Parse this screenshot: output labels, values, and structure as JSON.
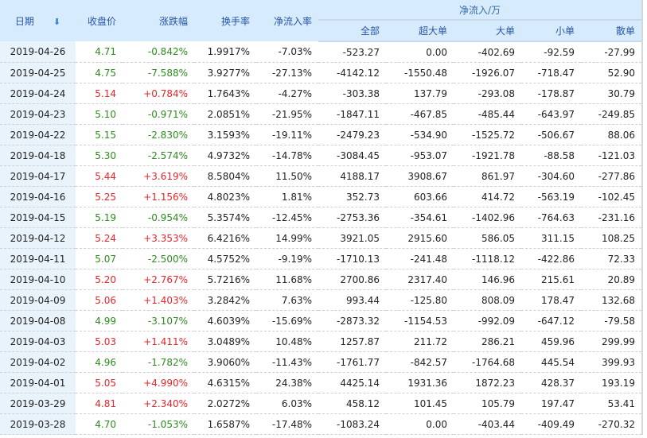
{
  "header": {
    "date": "日期",
    "sort_icon": "arrow-down-icon",
    "close": "收盘价",
    "change": "涨跌幅",
    "turnover": "换手率",
    "net_rate": "净流入率",
    "net_group": "净流入/万",
    "all": "全部",
    "super": "超大单",
    "large": "大单",
    "small": "小单",
    "retail": "散单"
  },
  "colors": {
    "up": "#e3262b",
    "down": "#2e8b1f",
    "header_bg": "#d6ebfb"
  },
  "rows": [
    [
      "2019-04-26",
      "4.71",
      "-0.842%",
      "1.9917%",
      "-7.03%",
      "-523.27",
      "0.00",
      "-402.69",
      "-92.59",
      "-27.99"
    ],
    [
      "2019-04-25",
      "4.75",
      "-7.588%",
      "3.9277%",
      "-27.13%",
      "-4142.12",
      "-1550.48",
      "-1926.07",
      "-718.47",
      "52.90"
    ],
    [
      "2019-04-24",
      "5.14",
      "+0.784%",
      "1.7643%",
      "-4.27%",
      "-303.38",
      "137.79",
      "-293.08",
      "-178.87",
      "30.79"
    ],
    [
      "2019-04-23",
      "5.10",
      "-0.971%",
      "2.0851%",
      "-21.95%",
      "-1847.11",
      "-467.85",
      "-485.44",
      "-643.97",
      "-249.85"
    ],
    [
      "2019-04-22",
      "5.15",
      "-2.830%",
      "3.1593%",
      "-19.11%",
      "-2479.23",
      "-534.90",
      "-1525.72",
      "-506.67",
      "88.06"
    ],
    [
      "2019-04-18",
      "5.30",
      "-2.574%",
      "4.9732%",
      "-14.78%",
      "-3084.45",
      "-953.07",
      "-1921.78",
      "-88.58",
      "-121.03"
    ],
    [
      "2019-04-17",
      "5.44",
      "+3.619%",
      "8.5804%",
      "11.50%",
      "4188.17",
      "3908.67",
      "861.97",
      "-304.60",
      "-277.86"
    ],
    [
      "2019-04-16",
      "5.25",
      "+1.156%",
      "4.8023%",
      "1.81%",
      "352.73",
      "603.66",
      "414.72",
      "-563.19",
      "-102.45"
    ],
    [
      "2019-04-15",
      "5.19",
      "-0.954%",
      "5.3574%",
      "-12.45%",
      "-2753.36",
      "-354.61",
      "-1402.96",
      "-764.63",
      "-231.16"
    ],
    [
      "2019-04-12",
      "5.24",
      "+3.353%",
      "6.4216%",
      "14.99%",
      "3921.05",
      "2915.60",
      "586.05",
      "311.15",
      "108.25"
    ],
    [
      "2019-04-11",
      "5.07",
      "-2.500%",
      "4.5752%",
      "-9.19%",
      "-1710.13",
      "-241.48",
      "-1118.12",
      "-422.86",
      "72.33"
    ],
    [
      "2019-04-10",
      "5.20",
      "+2.767%",
      "5.7216%",
      "11.68%",
      "2700.86",
      "2317.40",
      "146.96",
      "215.61",
      "20.89"
    ],
    [
      "2019-04-09",
      "5.06",
      "+1.403%",
      "3.2842%",
      "7.63%",
      "993.44",
      "-125.80",
      "808.09",
      "178.47",
      "132.68"
    ],
    [
      "2019-04-08",
      "4.99",
      "-3.107%",
      "4.6039%",
      "-15.69%",
      "-2873.32",
      "-1154.53",
      "-992.09",
      "-647.12",
      "-79.58"
    ],
    [
      "2019-04-03",
      "5.03",
      "+1.411%",
      "3.0489%",
      "10.48%",
      "1257.87",
      "211.72",
      "286.21",
      "459.96",
      "299.99"
    ],
    [
      "2019-04-02",
      "4.96",
      "-1.782%",
      "3.9060%",
      "-11.43%",
      "-1761.77",
      "-842.57",
      "-1764.68",
      "445.54",
      "399.93"
    ],
    [
      "2019-04-01",
      "5.05",
      "+4.990%",
      "4.6315%",
      "24.38%",
      "4425.14",
      "1931.36",
      "1872.23",
      "428.37",
      "193.19"
    ],
    [
      "2019-03-29",
      "4.81",
      "+2.340%",
      "2.0272%",
      "6.03%",
      "458.12",
      "101.45",
      "105.79",
      "197.47",
      "53.41"
    ],
    [
      "2019-03-28",
      "4.70",
      "-1.053%",
      "1.6587%",
      "-17.48%",
      "-1083.24",
      "0.00",
      "-403.44",
      "-409.49",
      "-270.32"
    ]
  ]
}
